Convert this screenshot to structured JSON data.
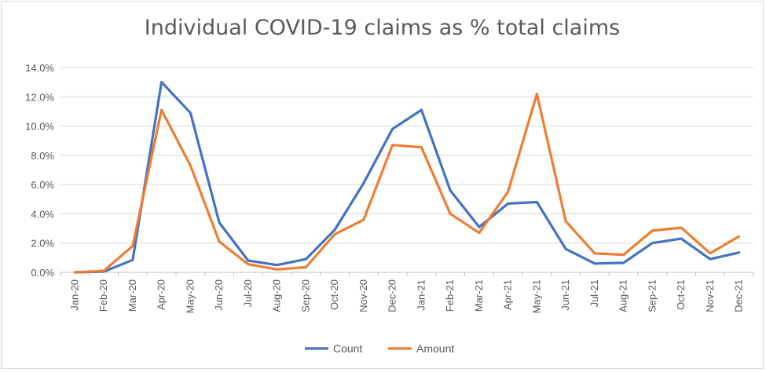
{
  "chart_data": {
    "type": "line",
    "title": "Individual COVID-19 claims as % total claims",
    "xlabel": "",
    "ylabel": "",
    "categories": [
      "Jan-20",
      "Feb-20",
      "Mar-20",
      "Apr-20",
      "May-20",
      "Jun-20",
      "Jul-20",
      "Aug-20",
      "Sep-20",
      "Oct-20",
      "Nov-20",
      "Dec-20",
      "Jan-21",
      "Feb-21",
      "Mar-21",
      "Apr-21",
      "May-21",
      "Jun-21",
      "Jul-21",
      "Aug-21",
      "Sep-21",
      "Oct-21",
      "Nov-21",
      "Dec-21"
    ],
    "ylim": [
      0,
      14
    ],
    "yticks": [
      "0.0%",
      "2.0%",
      "4.0%",
      "6.0%",
      "8.0%",
      "10.0%",
      "12.0%",
      "14.0%"
    ],
    "grid": true,
    "legend_position": "bottom",
    "series": [
      {
        "name": "Count",
        "color": "#4472c4",
        "values": [
          0.0,
          0.05,
          0.85,
          13.0,
          10.9,
          3.4,
          0.8,
          0.5,
          0.9,
          2.9,
          6.1,
          9.8,
          11.1,
          5.6,
          3.1,
          4.7,
          4.8,
          1.6,
          0.6,
          0.65,
          2.0,
          2.3,
          0.9,
          1.35
        ]
      },
      {
        "name": "Amount",
        "color": "#ed7d31",
        "values": [
          0.0,
          0.1,
          1.8,
          11.1,
          7.3,
          2.1,
          0.55,
          0.2,
          0.35,
          2.6,
          3.6,
          8.7,
          8.55,
          4.0,
          2.7,
          5.5,
          12.2,
          3.5,
          1.3,
          1.2,
          2.85,
          3.05,
          1.3,
          2.45
        ]
      }
    ]
  }
}
